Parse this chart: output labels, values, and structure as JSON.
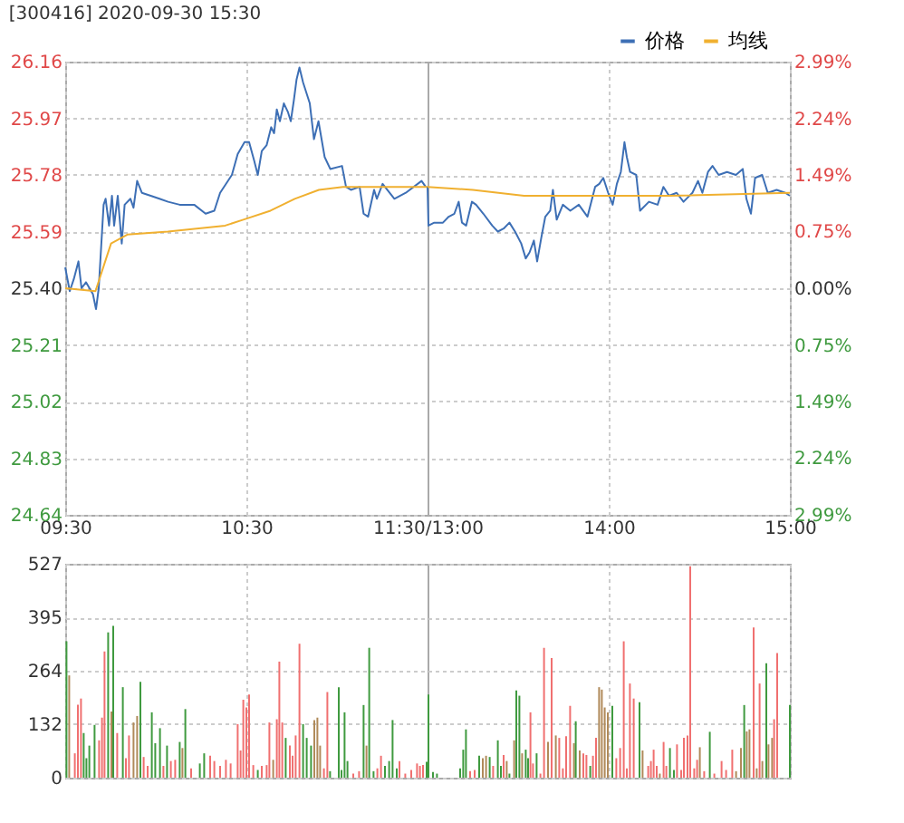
{
  "chart_data": [
    {
      "type": "line",
      "title": "[300416] 2020-09-30 15:30",
      "grid": true,
      "legend": "top right",
      "xlim": [
        9.5,
        11.5
      ],
      "xticks": [
        {
          "value": 9.5,
          "label": "09:30"
        },
        {
          "value": 10.5,
          "label": "10:30"
        },
        {
          "value": 11.5,
          "label": "11:30/13:00"
        }
      ],
      "ylim": [
        24.64,
        26.16
      ],
      "yticks": [
        24.64,
        24.83,
        25.02,
        25.21,
        {
          "value": 25.4,
          "label": "25.40"
        },
        25.59,
        25.78,
        25.97,
        26.16
      ],
      "series": [
        {
          "name": "价格",
          "color": "#3d6fb5",
          "x": [
            9.5,
            9.525,
            9.547,
            9.573,
            9.59,
            9.615,
            9.653,
            9.67,
            9.685,
            9.712,
            9.723,
            9.742,
            9.758,
            9.77,
            9.79,
            9.812,
            9.828,
            9.86,
            9.877,
            9.897,
            9.923,
            9.972,
            10.02,
            10.068,
            10.132,
            10.212,
            10.275,
            10.323,
            10.355,
            10.42,
            10.452,
            10.49,
            10.515,
            10.542,
            10.563,
            10.585,
            10.612,
            10.637,
            10.653,
            10.668,
            10.685,
            10.707,
            10.73,
            10.745,
            10.762,
            10.777,
            10.793,
            10.813,
            10.85,
            10.873,
            10.898,
            10.932,
            10.963,
            11.028,
            11.05,
            11.077,
            11.125,
            11.147,
            11.172,
            11.205,
            11.22,
            11.252,
            11.317,
            11.38,
            11.467,
            11.49
          ],
          "values": [
            25.47,
            25.39,
            25.43,
            25.49,
            25.4,
            25.42,
            25.38,
            25.33,
            25.4,
            25.68,
            25.7,
            25.61,
            25.71,
            25.61,
            25.71,
            25.55,
            25.68,
            25.7,
            25.67,
            25.76,
            25.72,
            25.71,
            25.7,
            25.69,
            25.68,
            25.68,
            25.65,
            25.66,
            25.72,
            25.78,
            25.85,
            25.89,
            25.89,
            25.83,
            25.78,
            25.86,
            25.88,
            25.94,
            25.92,
            26.0,
            25.96,
            26.02,
            25.99,
            25.96,
            26.03,
            26.1,
            26.14,
            26.09,
            26.02,
            25.9,
            25.96,
            25.84,
            25.8,
            25.81,
            25.74,
            25.73,
            25.74,
            25.65,
            25.64,
            25.73,
            25.7,
            25.75,
            25.7,
            25.72,
            25.76,
            25.74
          ]
        },
        {
          "name": "均线",
          "color": "#f0b030",
          "x": [
            9.5,
            9.667,
            9.753,
            9.843,
            10.067,
            10.383,
            10.483,
            10.633,
            10.767,
            10.9,
            11.033,
            11.167,
            11.5
          ],
          "values": [
            25.4,
            25.39,
            25.55,
            25.58,
            25.59,
            25.61,
            25.63,
            25.66,
            25.7,
            25.73,
            25.74,
            25.74,
            25.74
          ]
        }
      ]
    },
    {
      "type": "line",
      "grid": true,
      "tick_labels": "xy2",
      "xlim": [
        13,
        15
      ],
      "xticks": [
        {
          "value": 14,
          "label": "14:00"
        },
        {
          "value": 15,
          "label": "15:00"
        }
      ],
      "ylim": [
        24.64,
        26.16
      ],
      "y2lim": [
        -2.99,
        2.99
      ],
      "y2ticks": [
        {
          "value": -2.99,
          "label": "2.99%"
        },
        {
          "value": -2.24,
          "label": "2.24%"
        },
        {
          "value": -1.49,
          "label": "1.49%"
        },
        {
          "value": -0.75,
          "label": "0.75%"
        },
        {
          "value": 0,
          "label": "0.00%"
        },
        {
          "value": 0.75,
          "label": "0.75%"
        },
        {
          "value": 1.49,
          "label": "1.49%"
        },
        {
          "value": 2.24,
          "label": "2.24%"
        },
        {
          "value": 2.99,
          "label": "2.99%"
        }
      ],
      "series": [
        {
          "color": "#3d6fb5",
          "x": [
            13,
            13.005,
            13.037,
            13.085,
            13.117,
            13.148,
            13.172,
            13.19,
            13.213,
            13.245,
            13.268,
            13.308,
            13.357,
            13.388,
            13.42,
            13.452,
            13.483,
            13.517,
            13.542,
            13.563,
            13.587,
            13.605,
            13.628,
            13.65,
            13.677,
            13.692,
            13.713,
            13.747,
            13.788,
            13.835,
            13.883,
            13.925,
            13.948,
            13.97,
            13.997,
            14.022,
            14.045,
            14.067,
            14.087,
            14.1,
            14.118,
            14.152,
            14.173,
            14.222,
            14.27,
            14.302,
            14.333,
            14.375,
            14.413,
            14.462,
            14.493,
            14.517,
            14.548,
            14.573,
            14.607,
            14.653,
            14.702,
            14.74,
            14.76,
            14.785,
            14.808,
            14.847,
            14.878,
            14.927,
            14.975,
            15
          ],
          "values": [
            25.74,
            25.61,
            25.62,
            25.62,
            25.64,
            25.65,
            25.69,
            25.62,
            25.61,
            25.69,
            25.68,
            25.65,
            25.61,
            25.59,
            25.6,
            25.62,
            25.59,
            25.55,
            25.5,
            25.52,
            25.56,
            25.49,
            25.57,
            25.64,
            25.66,
            25.73,
            25.63,
            25.68,
            25.66,
            25.68,
            25.64,
            25.74,
            25.75,
            25.77,
            25.72,
            25.68,
            25.75,
            25.79,
            25.89,
            25.84,
            25.79,
            25.78,
            25.66,
            25.69,
            25.68,
            25.74,
            25.71,
            25.72,
            25.69,
            25.72,
            25.76,
            25.72,
            25.79,
            25.81,
            25.78,
            25.79,
            25.78,
            25.8,
            25.7,
            25.65,
            25.77,
            25.78,
            25.72,
            25.73,
            25.72,
            25.71
          ]
        },
        {
          "color": "#f0b030",
          "x": [
            13,
            13.25,
            13.533,
            13.833,
            14.333,
            15
          ],
          "values": [
            25.74,
            25.73,
            25.71,
            25.71,
            25.71,
            25.72
          ]
        }
      ]
    },
    {
      "type": "bar",
      "grid": true,
      "tick_labels": "y",
      "xlim": [
        9.5,
        11.5
      ],
      "xticks": [
        {
          "value": 9.5,
          "label": null
        },
        {
          "value": 10.5,
          "label": null
        },
        {
          "value": 11.5,
          "label": null
        }
      ],
      "ylim": [
        0,
        527
      ],
      "yticks": [
        0,
        132,
        264,
        395,
        527
      ],
      "x": [
        9.507,
        9.522,
        9.553,
        9.57,
        9.587,
        9.602,
        9.617,
        9.633,
        9.662,
        9.687,
        9.703,
        9.717,
        9.737,
        9.755,
        9.765,
        9.787,
        9.818,
        9.835,
        9.852,
        9.877,
        9.897,
        9.915,
        9.933,
        9.955,
        9.978,
        9.997,
        10.023,
        10.042,
        10.062,
        10.083,
        10.107,
        10.132,
        10.147,
        10.163,
        10.195,
        10.243,
        10.267,
        10.3,
        10.323,
        10.355,
        10.387,
        10.413,
        10.452,
        10.468,
        10.483,
        10.5,
        10.515,
        10.538,
        10.563,
        10.585,
        10.612,
        10.627,
        10.648,
        10.668,
        10.682,
        10.698,
        10.717,
        10.74,
        10.755,
        10.772,
        10.793,
        10.813,
        10.833,
        10.857,
        10.875,
        10.892,
        10.907,
        10.928,
        10.947,
        10.962,
        11.01,
        11.025,
        11.042,
        11.058,
        11.09,
        11.122,
        11.147,
        11.163,
        11.178,
        11.202,
        11.223,
        11.243,
        11.265,
        11.288,
        11.307,
        11.33,
        11.345,
        11.377,
        11.41,
        11.442,
        11.458,
        11.475,
        11.495
      ],
      "values": [
        336,
        252,
        60,
        180,
        195,
        110,
        48,
        79,
        130,
        92,
        148,
        311,
        358,
        163,
        374,
        110,
        223,
        48,
        104,
        136,
        152,
        236,
        51,
        29,
        161,
        85,
        122,
        29,
        79,
        41,
        44,
        88,
        73,
        169,
        23,
        35,
        60,
        54,
        41,
        29,
        44,
        35,
        132,
        67,
        192,
        173,
        205,
        31,
        19,
        29,
        31,
        136,
        44,
        144,
        286,
        136,
        98,
        79,
        54,
        104,
        330,
        132,
        98,
        79,
        142,
        148,
        79,
        23,
        211,
        16,
        223,
        19,
        161,
        41,
        10,
        16,
        179,
        79,
        320,
        16,
        23,
        54,
        29,
        41,
        142,
        23,
        41,
        10,
        19,
        35,
        29,
        31,
        39
      ],
      "colors": [
        "#3f9a3f",
        "#b08a5a",
        "#f07070",
        "#f07070",
        "#f07070",
        "#3f9a3f",
        "#3f9a3f",
        "#3f9a3f",
        "#3f9a3f",
        "#f07070",
        "#f07070",
        "#f07070",
        "#3f9a3f",
        "#b08a5a",
        "#3f9a3f",
        "#f07070",
        "#3f9a3f",
        "#f07070",
        "#f07070",
        "#b08a5a",
        "#b08a5a",
        "#3f9a3f",
        "#f07070",
        "#f07070",
        "#3f9a3f",
        "#3f9a3f",
        "#3f9a3f",
        "#f07070",
        "#3f9a3f",
        "#f07070",
        "#f07070",
        "#3f9a3f",
        "#b08a5a",
        "#3f9a3f",
        "#f07070",
        "#3f9a3f",
        "#3f9a3f",
        "#f07070",
        "#f07070",
        "#f07070",
        "#f07070",
        "#f07070",
        "#f07070",
        "#f07070",
        "#f07070",
        "#f07070",
        "#f07070",
        "#f07070",
        "#3f9a3f",
        "#f07070",
        "#f07070",
        "#f07070",
        "#b08a5a",
        "#f07070",
        "#f07070",
        "#f07070",
        "#3f9a3f",
        "#f07070",
        "#f07070",
        "#f07070",
        "#f07070",
        "#3f9a3f",
        "#3f9a3f",
        "#3f9a3f",
        "#b08a5a",
        "#b08a5a",
        "#b08a5a",
        "#f07070",
        "#f07070",
        "#3f9a3f",
        "#3f9a3f",
        "#3f9a3f",
        "#3f9a3f",
        "#3f9a3f",
        "#f07070",
        "#f07070",
        "#3f9a3f",
        "#b08a5a",
        "#3f9a3f",
        "#3f9a3f",
        "#f07070",
        "#f07070",
        "#3f9a3f",
        "#3f9a3f",
        "#3f9a3f",
        "#3f9a3f",
        "#f07070",
        "#f07070",
        "#f07070",
        "#f07070",
        "#f07070",
        "#f07070",
        "#3f9a3f"
      ]
    },
    {
      "type": "bar",
      "grid": true,
      "tick_labels": false,
      "xlim": [
        13,
        15
      ],
      "xticks": [
        {
          "value": 14,
          "label": null
        },
        {
          "value": 15,
          "label": null
        }
      ],
      "ylim": [
        0,
        527
      ],
      "yticks": [
        0,
        132,
        264,
        395,
        527
      ],
      "x": [
        13.005,
        13.03,
        13.052,
        13.1,
        13.18,
        13.197,
        13.212,
        13.235,
        13.26,
        13.285,
        13.305,
        13.323,
        13.343,
        13.362,
        13.388,
        13.405,
        13.42,
        13.437,
        13.452,
        13.478,
        13.49,
        13.507,
        13.522,
        13.542,
        13.555,
        13.568,
        13.582,
        13.602,
        13.623,
        13.643,
        13.665,
        13.685,
        13.708,
        13.727,
        13.747,
        13.765,
        13.787,
        13.808,
        13.818,
        13.84,
        13.86,
        13.877,
        13.898,
        13.913,
        13.93,
        13.947,
        13.962,
        13.978,
        13.995,
        14.02,
        14.042,
        14.063,
        14.083,
        14.1,
        14.117,
        14.138,
        14.17,
        14.187,
        14.218,
        14.233,
        14.248,
        14.265,
        14.282,
        14.303,
        14.318,
        14.338,
        14.36,
        14.377,
        14.4,
        14.415,
        14.435,
        14.447,
        14.45,
        14.472,
        14.488,
        14.503,
        14.527,
        14.558,
        14.583,
        14.623,
        14.648,
        14.682,
        14.703,
        14.73,
        14.748,
        14.762,
        14.777,
        14.8,
        14.817,
        14.833,
        14.848,
        14.87,
        14.882,
        14.902,
        14.913,
        14.93,
        14.952,
        14.978,
        15
      ],
      "values": [
        205,
        14,
        10,
        null,
        23,
        69,
        119,
        16,
        19,
        54,
        48,
        54,
        51,
        29,
        92,
        29,
        56,
        41,
        10,
        92,
        215,
        202,
        60,
        69,
        48,
        161,
        35,
        60,
        10,
        320,
        88,
        295,
        104,
        98,
        23,
        102,
        177,
        85,
        139,
        67,
        60,
        56,
        29,
        54,
        98,
        223,
        217,
        173,
        161,
        177,
        48,
        73,
        336,
        23,
        232,
        195,
        186,
        67,
        29,
        41,
        69,
        29,
        10,
        88,
        29,
        73,
        19,
        82,
        19,
        98,
        104,
        null,
        521,
        23,
        44,
        75,
        16,
        113,
        10,
        41,
        19,
        69,
        16,
        73,
        179,
        114,
        119,
        370,
        23,
        232,
        41,
        282,
        82,
        98,
        144,
        307,
        null,
        null,
        179
      ],
      "colors": [
        "#3f9a3f",
        "#3f9a3f",
        "#3f9a3f",
        "#3f9a3f",
        "#3f9a3f",
        "#3f9a3f",
        "#3f9a3f",
        "#f07070",
        "#f07070",
        "#3f9a3f",
        "#b08a5a",
        "#b08a5a",
        "#3f9a3f",
        "#f07070",
        "#3f9a3f",
        "#3f9a3f",
        "#f07070",
        "#b08a5a",
        "#3f9a3f",
        "#b08a5a",
        "#3f9a3f",
        "#3f9a3f",
        "#b08a5a",
        "#3f9a3f",
        "#3f9a3f",
        "#f07070",
        "#f07070",
        "#3f9a3f",
        "#f07070",
        "#f07070",
        "#b08a5a",
        "#f07070",
        "#b08a5a",
        "#f07070",
        "#f07070",
        "#f07070",
        "#f07070",
        "#b08a5a",
        "#3f9a3f",
        "#b08a5a",
        "#f07070",
        "#f07070",
        "#3f9a3f",
        "#f07070",
        "#f07070",
        "#b08a5a",
        "#b08a5a",
        "#b08a5a",
        "#b08a5a",
        "#3f9a3f",
        "#f07070",
        "#f07070",
        "#f07070",
        "#f07070",
        "#f07070",
        "#f07070",
        "#3f9a3f",
        "#b08a5a",
        "#f07070",
        "#f07070",
        "#f07070",
        "#f07070",
        "#b08a5a",
        "#f07070",
        "#f07070",
        "#3f9a3f",
        "#3f9a3f",
        "#f07070",
        "#f07070",
        "#f07070",
        "#f07070",
        "#f07070",
        "#f07070",
        "#f07070",
        "#f07070",
        "#b08a5a",
        "#f07070",
        "#3f9a3f",
        "#f07070",
        "#f07070",
        "#f07070",
        "#f07070",
        "#b08a5a",
        "#b08a5a",
        "#3f9a3f",
        "#b08a5a",
        "#b08a5a",
        "#f07070",
        "#b08a5a",
        "#f07070",
        "#b08a5a",
        "#3f9a3f",
        "#b08a5a",
        "#b08a5a",
        "#f07070",
        "#f07070",
        "#b08a5a",
        "#3f9a3f",
        "#3f9a3f"
      ]
    }
  ]
}
